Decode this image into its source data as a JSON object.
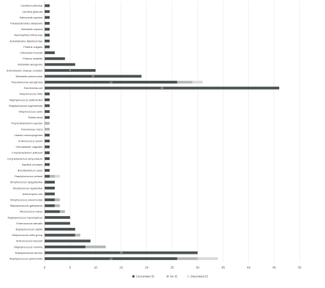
{
  "chart_data": {
    "type": "bar",
    "orientation": "horizontal",
    "stacked": true,
    "categories": [
      "Candida lusitaniae",
      "Candida glabrata",
      "Salmonella species",
      "Parabacteroides distasonis",
      "Klebsiella oxytoca",
      "Haemophilus influenzae",
      "Acinetobacter dijkshoorniae",
      "Proteus vulgaris",
      "Citrobacter freundii",
      "Proteus mirabilis",
      "Klebsiella aerogenes",
      "Enterobacter cloacae complex",
      "Klebsiella pneumoniae",
      "Pseudomonas aeruginosa",
      "Escherichia coli",
      "Streptococcus mitis",
      "Staphylococcus pettenkoferi",
      "Staphylococcus lugdunensis",
      "Streptococcus canis",
      "Rothia aeria",
      "Propionibacterium species",
      "Parvimonas micra",
      "Listeria monocytogenes",
      "Enterococcus avium",
      "Dermabacter vaginalis",
      "Corynebacterium jeikeium",
      "Corynebacterium amycolatum",
      "Bacillus circulans",
      "Brevibacterium casei",
      "Staphylococcus petrasii",
      "Streptococcus dysgalactiae",
      "Streptococcus agalactiae",
      "Actinomyces oris",
      "Streptococcus pneumoniae",
      "Staphylococcus gallolyticus",
      "Micrococcus luteus",
      "Staphylococcus haemolyticus",
      "Enterococcus faecalis",
      "Staphylococcus capitis",
      "Streptococcus mitis group",
      "Enterococcus faecium",
      "Staphylococcus hominis",
      "Staphylococcus aureus",
      "Staphylococcus epidermidis"
    ],
    "series": [
      {
        "name": "Concordant ID",
        "color": "#4d5454",
        "values": [
          1,
          1,
          1,
          1,
          1,
          1,
          1,
          1,
          2,
          4,
          6,
          10,
          19,
          26,
          46,
          1,
          1,
          1,
          1,
          1,
          0,
          0,
          1,
          1,
          1,
          1,
          1,
          1,
          1,
          1,
          2,
          2,
          2,
          2,
          2,
          3,
          5,
          5,
          6,
          6,
          9,
          8,
          30,
          26
        ]
      },
      {
        "name": "No ID",
        "color": "#b6b9b9",
        "values": [
          0,
          0,
          0,
          0,
          0,
          0,
          0,
          0,
          0,
          0,
          0,
          0,
          0,
          3,
          0,
          0,
          0,
          0,
          0,
          0,
          1,
          1,
          0,
          0,
          0,
          0,
          0,
          0,
          0,
          1,
          0,
          0,
          0,
          1,
          1,
          1,
          0,
          0,
          0,
          1,
          0,
          4,
          0,
          4
        ]
      },
      {
        "name": "Discordant ID",
        "color": "#d9dbdb",
        "values": [
          0,
          0,
          0,
          0,
          0,
          0,
          0,
          0,
          0,
          0,
          0,
          0,
          0,
          2,
          0,
          0,
          0,
          0,
          0,
          0,
          0,
          0,
          0,
          0,
          0,
          0,
          0,
          0,
          0,
          1,
          0,
          0,
          0,
          0,
          0,
          0,
          0,
          0,
          0,
          0,
          0,
          0,
          0,
          4
        ]
      }
    ],
    "data_labels": [
      {
        "category": "Enterobacter cloacae complex",
        "value": "5"
      },
      {
        "category": "Klebsiella pneumoniae",
        "value": "10"
      },
      {
        "category": "Pseudomonas aeruginosa",
        "value": "13"
      },
      {
        "category": "Escherichia coli",
        "value": "23"
      },
      {
        "category": "Staphylococcus aureus",
        "value": "15"
      },
      {
        "category": "Staphylococcus epidermidis",
        "value": "13"
      }
    ],
    "x_ticks": [
      0,
      5,
      10,
      15,
      20,
      25,
      30,
      35,
      40,
      45,
      50
    ],
    "xlim": [
      0,
      50
    ],
    "grid": true,
    "legend_position": "bottom",
    "legend": [
      "Concordant ID",
      "No ID",
      "Discordant ID"
    ],
    "title": "",
    "xlabel": "",
    "ylabel": ""
  }
}
